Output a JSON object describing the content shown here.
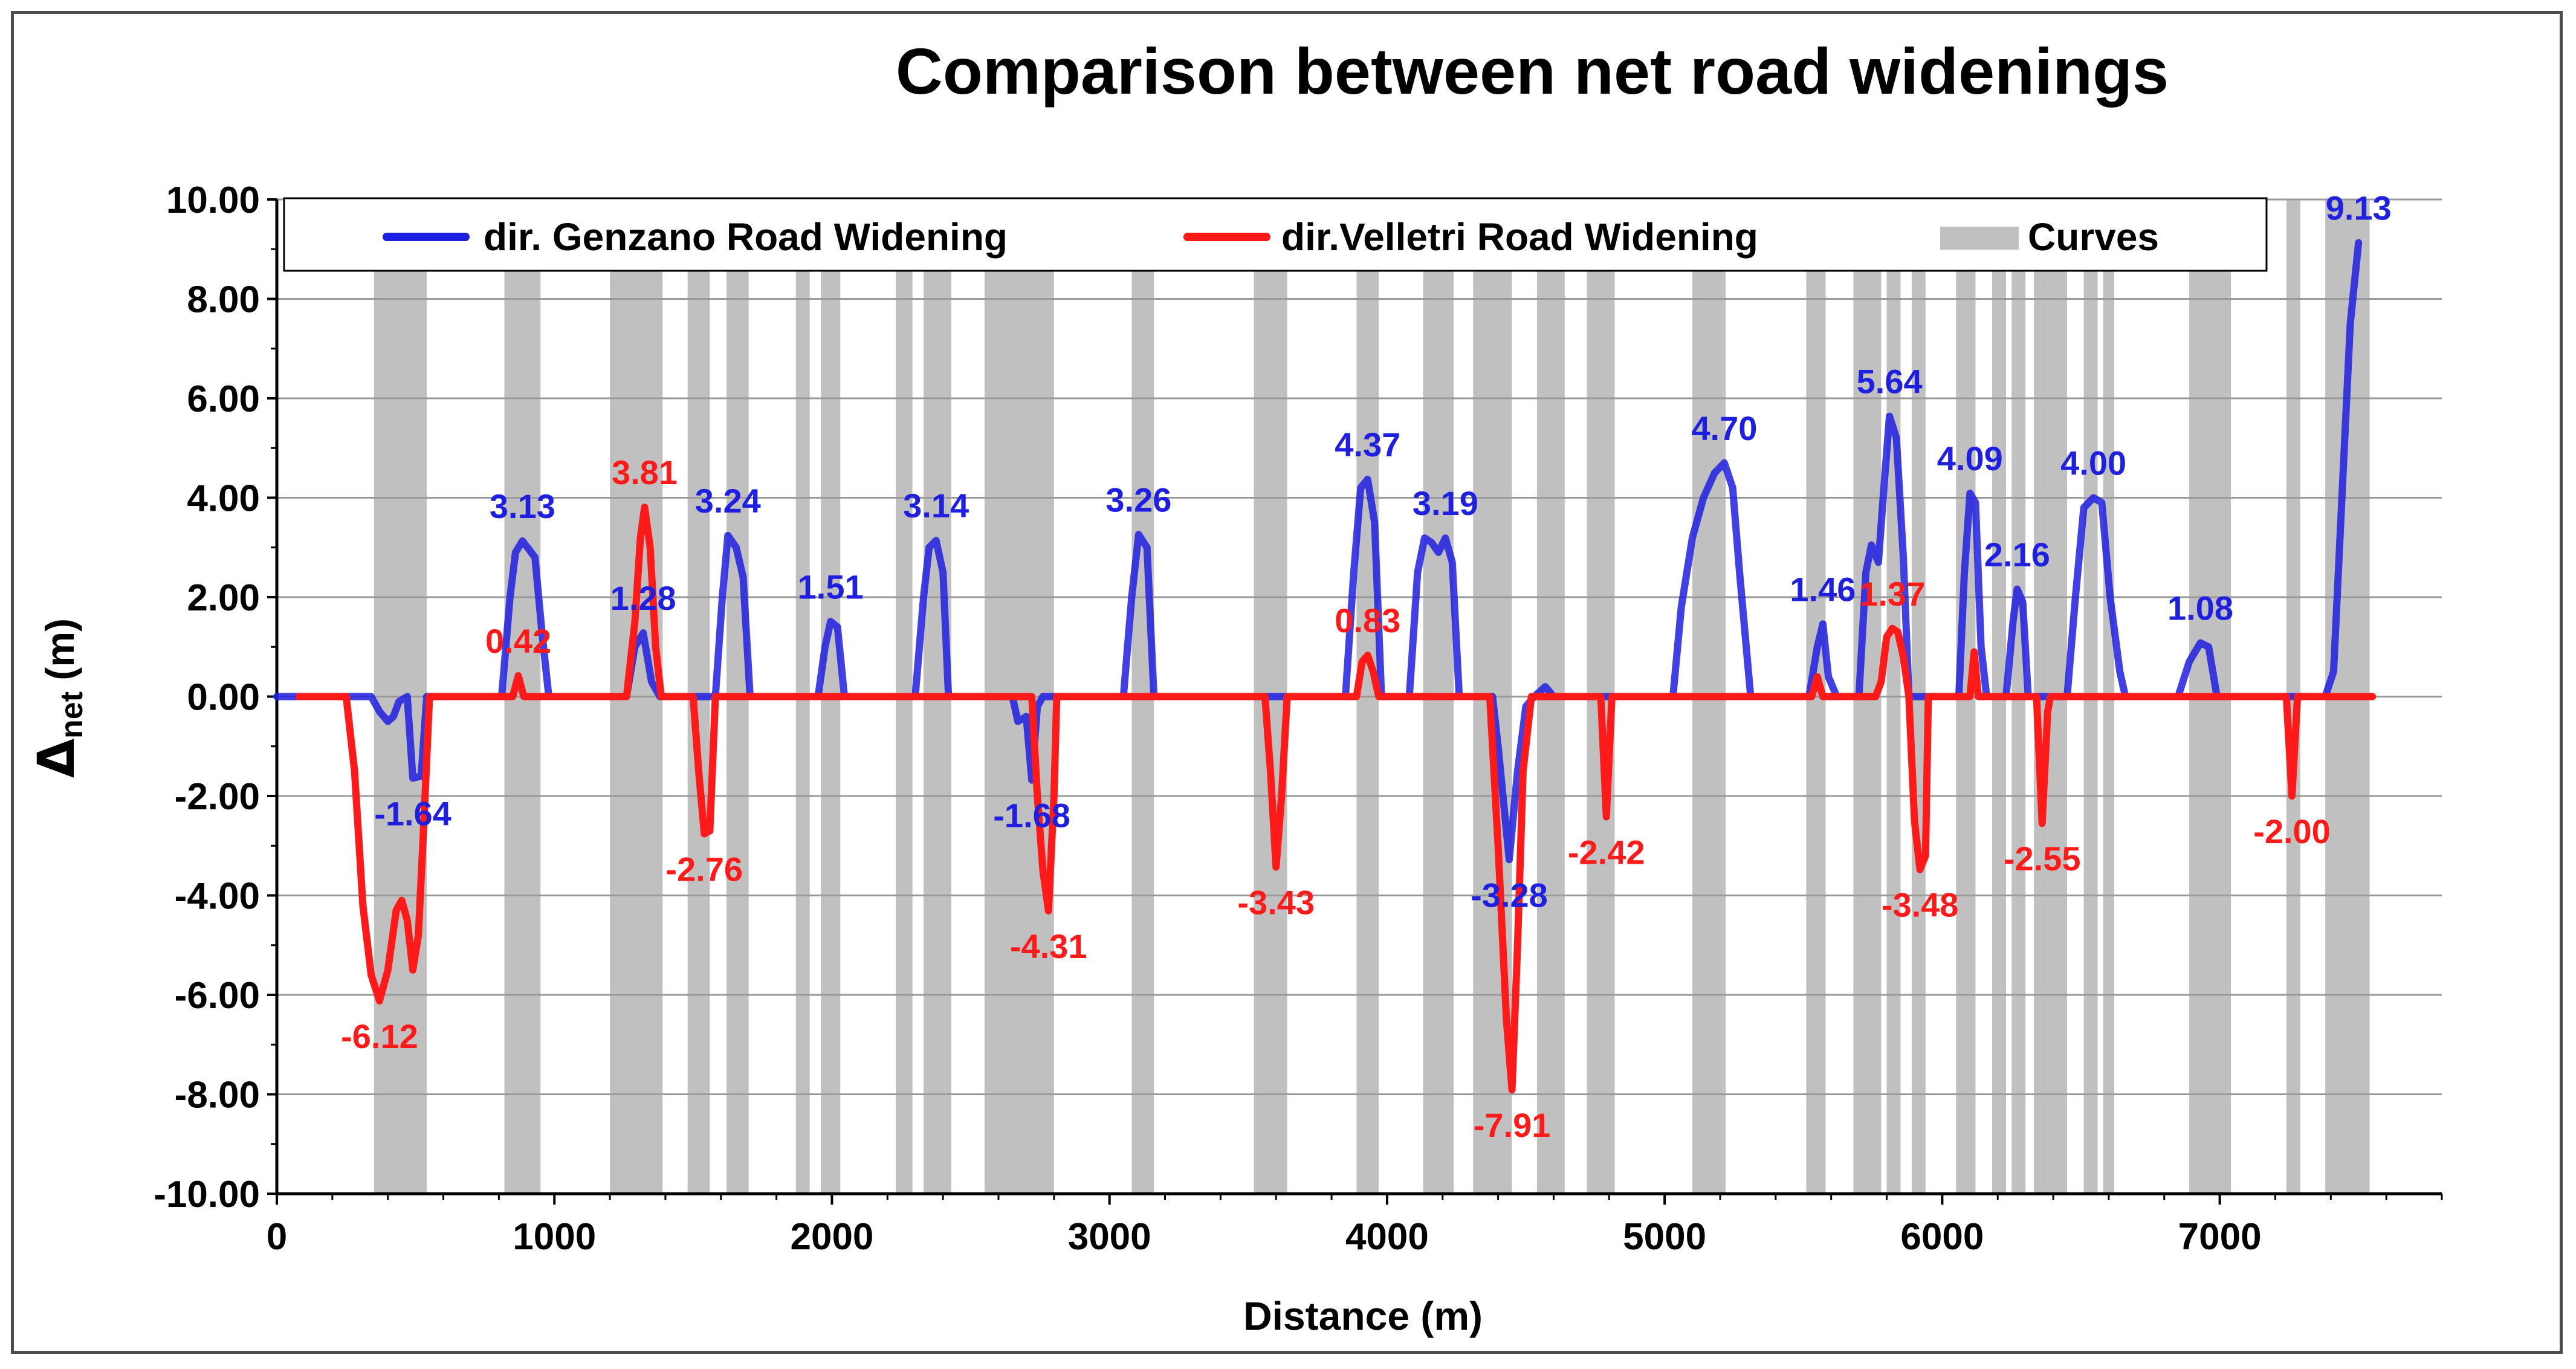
{
  "chart_data": {
    "type": "line",
    "title": "Comparison between net road widenings",
    "xlabel": "Distance (m)",
    "ylabel_symbol": "Δ",
    "ylabel_sub": "net",
    "ylabel_unit": " (m)",
    "xlim": [
      0,
      7800
    ],
    "ylim": [
      -10,
      10
    ],
    "x_ticks": [
      0,
      1000,
      2000,
      3000,
      4000,
      5000,
      6000,
      7000
    ],
    "y_ticks": [
      "10.00",
      "8.00",
      "6.00",
      "4.00",
      "2.00",
      "0.00",
      "-2.00",
      "-4.00",
      "-6.00",
      "-8.00",
      "-10.00"
    ],
    "grid": "horizontal",
    "legend_position": "top",
    "colors": {
      "genzano": "#1f1fe0",
      "velletri": "#ff1a1a",
      "curves": "#c0c0c0"
    },
    "curves": [
      [
        350,
        540
      ],
      [
        820,
        950
      ],
      [
        1200,
        1390
      ],
      [
        1480,
        1560
      ],
      [
        1620,
        1700
      ],
      [
        1870,
        1920
      ],
      [
        1960,
        2030
      ],
      [
        2230,
        2290
      ],
      [
        2330,
        2430
      ],
      [
        2550,
        2800
      ],
      [
        3080,
        3160
      ],
      [
        3520,
        3640
      ],
      [
        3890,
        3970
      ],
      [
        4130,
        4240
      ],
      [
        4310,
        4450
      ],
      [
        4540,
        4640
      ],
      [
        4720,
        4820
      ],
      [
        5100,
        5220
      ],
      [
        5510,
        5580
      ],
      [
        5680,
        5780
      ],
      [
        5800,
        5850
      ],
      [
        5890,
        5940
      ],
      [
        6050,
        6120
      ],
      [
        6180,
        6230
      ],
      [
        6250,
        6300
      ],
      [
        6330,
        6380
      ],
      [
        6380,
        6450
      ],
      [
        6510,
        6560
      ],
      [
        6580,
        6620
      ],
      [
        6890,
        7040
      ],
      [
        7240,
        7290
      ],
      [
        7380,
        7540
      ]
    ],
    "series": [
      {
        "name": "dir. Genzano Road Widening",
        "color": "#1f1fe0",
        "points": [
          [
            0,
            0
          ],
          [
            340,
            0
          ],
          [
            370,
            -0.3
          ],
          [
            400,
            -0.5
          ],
          [
            420,
            -0.4
          ],
          [
            440,
            -0.1
          ],
          [
            470,
            0
          ],
          [
            490,
            -1.64
          ],
          [
            520,
            -1.6
          ],
          [
            540,
            0
          ],
          [
            810,
            0
          ],
          [
            840,
            2
          ],
          [
            860,
            2.9
          ],
          [
            885,
            3.13
          ],
          [
            910,
            2.95
          ],
          [
            930,
            2.8
          ],
          [
            955,
            1.3
          ],
          [
            980,
            0
          ],
          [
            1260,
            0
          ],
          [
            1290,
            1
          ],
          [
            1320,
            1.28
          ],
          [
            1350,
            0.3
          ],
          [
            1380,
            0
          ],
          [
            1580,
            0
          ],
          [
            1605,
            2
          ],
          [
            1625,
            3.24
          ],
          [
            1655,
            3.0
          ],
          [
            1680,
            2.4
          ],
          [
            1705,
            0
          ],
          [
            1950,
            0
          ],
          [
            1975,
            1.0
          ],
          [
            1995,
            1.51
          ],
          [
            2020,
            1.4
          ],
          [
            2045,
            0
          ],
          [
            2300,
            0
          ],
          [
            2330,
            2.0
          ],
          [
            2350,
            3.0
          ],
          [
            2375,
            3.14
          ],
          [
            2400,
            2.5
          ],
          [
            2420,
            0
          ],
          [
            2650,
            0
          ],
          [
            2670,
            -0.5
          ],
          [
            2700,
            -0.4
          ],
          [
            2720,
            -1.68
          ],
          [
            2740,
            -0.2
          ],
          [
            2760,
            0
          ],
          [
            3050,
            0
          ],
          [
            3080,
            2.0
          ],
          [
            3105,
            3.26
          ],
          [
            3135,
            3.0
          ],
          [
            3160,
            0
          ],
          [
            3850,
            0
          ],
          [
            3880,
            2.5
          ],
          [
            3905,
            4.2
          ],
          [
            3930,
            4.37
          ],
          [
            3955,
            3.5
          ],
          [
            3980,
            0
          ],
          [
            4080,
            0
          ],
          [
            4110,
            2.5
          ],
          [
            4135,
            3.19
          ],
          [
            4160,
            3.1
          ],
          [
            4185,
            2.9
          ],
          [
            4210,
            3.19
          ],
          [
            4235,
            2.7
          ],
          [
            4260,
            0
          ],
          [
            4380,
            0
          ],
          [
            4400,
            -1.0
          ],
          [
            4440,
            -3.28
          ],
          [
            4470,
            -1.5
          ],
          [
            4500,
            -0.2
          ],
          [
            4530,
            0
          ],
          [
            4570,
            0.2
          ],
          [
            4600,
            0
          ],
          [
            5030,
            0
          ],
          [
            5060,
            1.8
          ],
          [
            5100,
            3.2
          ],
          [
            5140,
            4.0
          ],
          [
            5180,
            4.5
          ],
          [
            5215,
            4.7
          ],
          [
            5245,
            4.2
          ],
          [
            5270,
            2.5
          ],
          [
            5310,
            0
          ],
          [
            5520,
            0
          ],
          [
            5550,
            1.0
          ],
          [
            5570,
            1.46
          ],
          [
            5590,
            0.4
          ],
          [
            5620,
            0
          ],
          [
            5700,
            0
          ],
          [
            5725,
            2.5
          ],
          [
            5745,
            3.05
          ],
          [
            5770,
            2.7
          ],
          [
            5790,
            4.2
          ],
          [
            5810,
            5.64
          ],
          [
            5835,
            5.2
          ],
          [
            5860,
            2.8
          ],
          [
            5880,
            0
          ],
          [
            6060,
            0
          ],
          [
            6080,
            2.5
          ],
          [
            6100,
            4.09
          ],
          [
            6120,
            3.9
          ],
          [
            6140,
            1.0
          ],
          [
            6160,
            0
          ],
          [
            6230,
            0
          ],
          [
            6255,
            1.5
          ],
          [
            6270,
            2.16
          ],
          [
            6290,
            1.9
          ],
          [
            6310,
            0
          ],
          [
            6450,
            0
          ],
          [
            6480,
            2.0
          ],
          [
            6510,
            3.8
          ],
          [
            6545,
            4.0
          ],
          [
            6575,
            3.9
          ],
          [
            6605,
            2.0
          ],
          [
            6640,
            0.5
          ],
          [
            6660,
            0
          ],
          [
            6850,
            0
          ],
          [
            6890,
            0.7
          ],
          [
            6930,
            1.08
          ],
          [
            6960,
            1.0
          ],
          [
            6990,
            0
          ],
          [
            7380,
            0
          ],
          [
            7410,
            0.5
          ],
          [
            7440,
            4.0
          ],
          [
            7470,
            7.5
          ],
          [
            7500,
            9.13
          ]
        ],
        "labels": [
          {
            "text": "3.13",
            "x": 885,
            "y": 3.13
          },
          {
            "text": "1.28",
            "x": 1320,
            "y": 1.28
          },
          {
            "text": "3.24",
            "x": 1625,
            "y": 3.24
          },
          {
            "text": "1.51",
            "x": 1995,
            "y": 1.51
          },
          {
            "text": "3.14",
            "x": 2375,
            "y": 3.14
          },
          {
            "text": "3.26",
            "x": 3105,
            "y": 3.26
          },
          {
            "text": "4.37",
            "x": 3930,
            "y": 4.37
          },
          {
            "text": "3.19",
            "x": 4210,
            "y": 3.19
          },
          {
            "text": "4.70",
            "x": 5215,
            "y": 4.7
          },
          {
            "text": "1.46",
            "x": 5570,
            "y": 1.46
          },
          {
            "text": "5.64",
            "x": 5810,
            "y": 5.64
          },
          {
            "text": "4.09",
            "x": 6100,
            "y": 4.09
          },
          {
            "text": "2.16",
            "x": 6270,
            "y": 2.16
          },
          {
            "text": "4.00",
            "x": 6545,
            "y": 4.0
          },
          {
            "text": "1.08",
            "x": 6930,
            "y": 1.08
          },
          {
            "text": "9.13",
            "x": 7500,
            "y": 9.13
          },
          {
            "text": "-1.64",
            "x": 490,
            "y": -1.64
          },
          {
            "text": "-1.68",
            "x": 2720,
            "y": -1.68
          },
          {
            "text": "-3.28",
            "x": 4440,
            "y": -3.28
          }
        ]
      },
      {
        "name": "dir.Velletri Road Widening",
        "color": "#ff1a1a",
        "points": [
          [
            80,
            0
          ],
          [
            250,
            0
          ],
          [
            280,
            -1.5
          ],
          [
            310,
            -4.2
          ],
          [
            340,
            -5.6
          ],
          [
            370,
            -6.12
          ],
          [
            400,
            -5.5
          ],
          [
            430,
            -4.3
          ],
          [
            450,
            -4.1
          ],
          [
            470,
            -4.5
          ],
          [
            490,
            -5.5
          ],
          [
            510,
            -4.8
          ],
          [
            530,
            -2.5
          ],
          [
            550,
            0
          ],
          [
            850,
            0
          ],
          [
            870,
            0.42
          ],
          [
            890,
            0
          ],
          [
            1260,
            0
          ],
          [
            1290,
            1.5
          ],
          [
            1310,
            3.2
          ],
          [
            1325,
            3.81
          ],
          [
            1345,
            3.0
          ],
          [
            1365,
            1.0
          ],
          [
            1385,
            0
          ],
          [
            1500,
            0
          ],
          [
            1520,
            -1.5
          ],
          [
            1540,
            -2.76
          ],
          [
            1560,
            -2.7
          ],
          [
            1580,
            0
          ],
          [
            2720,
            0
          ],
          [
            2740,
            -2.0
          ],
          [
            2760,
            -3.5
          ],
          [
            2780,
            -4.31
          ],
          [
            2800,
            -2.0
          ],
          [
            2810,
            0
          ],
          [
            3560,
            0
          ],
          [
            3580,
            -1.5
          ],
          [
            3600,
            -3.43
          ],
          [
            3620,
            -2.0
          ],
          [
            3640,
            0
          ],
          [
            3890,
            0
          ],
          [
            3910,
            0.7
          ],
          [
            3930,
            0.83
          ],
          [
            3950,
            0.5
          ],
          [
            3970,
            0
          ],
          [
            4370,
            0
          ],
          [
            4400,
            -3.0
          ],
          [
            4430,
            -6.5
          ],
          [
            4450,
            -7.91
          ],
          [
            4470,
            -5.0
          ],
          [
            4490,
            -1.5
          ],
          [
            4520,
            0
          ],
          [
            4770,
            0
          ],
          [
            4790,
            -2.42
          ],
          [
            4810,
            0
          ],
          [
            5530,
            0
          ],
          [
            5550,
            0.4
          ],
          [
            5570,
            0
          ],
          [
            5760,
            0
          ],
          [
            5780,
            0.3
          ],
          [
            5800,
            1.2
          ],
          [
            5820,
            1.37
          ],
          [
            5840,
            1.3
          ],
          [
            5860,
            0.8
          ],
          [
            5880,
            0
          ],
          [
            5880,
            0
          ],
          [
            5900,
            -2.5
          ],
          [
            5920,
            -3.48
          ],
          [
            5940,
            -3.2
          ],
          [
            5950,
            0
          ],
          [
            6100,
            0
          ],
          [
            6115,
            0.9
          ],
          [
            6130,
            0
          ],
          [
            6340,
            0
          ],
          [
            6360,
            -2.55
          ],
          [
            6380,
            -0.3
          ],
          [
            6390,
            0
          ],
          [
            7240,
            0
          ],
          [
            7260,
            -2.0
          ],
          [
            7280,
            0
          ],
          [
            7550,
            0
          ]
        ],
        "labels": [
          {
            "text": "3.81",
            "x": 1325,
            "y": 3.81
          },
          {
            "text": "0.42",
            "x": 870,
            "y": 0.42
          },
          {
            "text": "0.83",
            "x": 3930,
            "y": 0.83
          },
          {
            "text": "1.37",
            "x": 5820,
            "y": 1.37
          },
          {
            "text": "-6.12",
            "x": 370,
            "y": -6.12
          },
          {
            "text": "-2.76",
            "x": 1540,
            "y": -2.76
          },
          {
            "text": "-4.31",
            "x": 2780,
            "y": -4.31
          },
          {
            "text": "-3.43",
            "x": 3600,
            "y": -3.43
          },
          {
            "text": "-7.91",
            "x": 4450,
            "y": -7.91
          },
          {
            "text": "-2.42",
            "x": 4790,
            "y": -2.42
          },
          {
            "text": "-3.48",
            "x": 5920,
            "y": -3.48
          },
          {
            "text": "-2.55",
            "x": 6360,
            "y": -2.55
          },
          {
            "text": "-2.00",
            "x": 7260,
            "y": -2.0
          }
        ]
      }
    ],
    "legend": {
      "items": [
        {
          "label": "dir. Genzano Road Widening",
          "color": "#1f1fe0",
          "kind": "line"
        },
        {
          "label": "dir.Velletri Road Widening",
          "color": "#ff1a1a",
          "kind": "line"
        },
        {
          "label": "Curves",
          "color": "#c0c0c0",
          "kind": "band"
        }
      ]
    }
  }
}
